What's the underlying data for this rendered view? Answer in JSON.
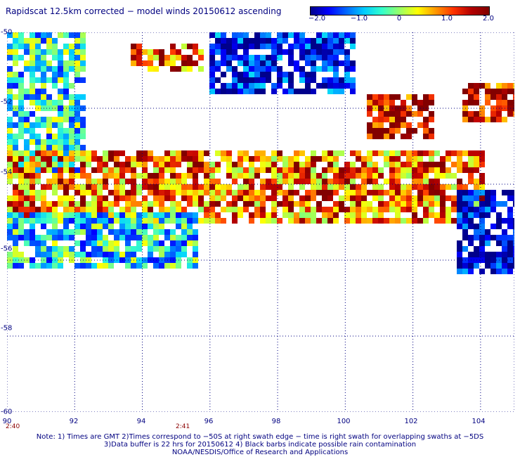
{
  "title": "Rapidscat 12.5km corrected − model winds 20150612 ascending",
  "colorbar": {
    "tick_labels": [
      "−2.0",
      "−1.0",
      "0",
      "1.0",
      "2.0"
    ],
    "tick_values": [
      -2.0,
      -1.0,
      0,
      1.0,
      2.0
    ],
    "colors": [
      "#00008b",
      "#0000ff",
      "#0066ff",
      "#00ccff",
      "#33ffcc",
      "#99ff66",
      "#ffff00",
      "#ff9900",
      "#ff3300",
      "#b30000",
      "#800000"
    ]
  },
  "axes": {
    "lat_labels": [
      "-50",
      "-52",
      "-54",
      "-56",
      "-58",
      "-60"
    ],
    "lon_labels": [
      "90",
      "92",
      "94",
      "96",
      "98",
      "100",
      "102",
      "104"
    ],
    "time_labels": [
      "2:40",
      "2:41"
    ]
  },
  "notes": [
    "Note: 1) Times are GMT 2)Times correspond to −50S at right swath edge − time is right swath for overlapping swaths at −5DS",
    "3)Data buffer is 22 hrs for 20150612 4) Black barbs indicate possible rain contamination",
    "NOAA/NESDIS/Office of Research and Applications"
  ],
  "map_data": {
    "lon_range": [
      90,
      105
    ],
    "lat_range": [
      -60,
      -50
    ],
    "regions": [
      {
        "name": "north-blue-block",
        "lon": [
          96.1,
          100.3
        ],
        "lat": [
          -51.6,
          -50.0
        ],
        "level": -1.6
      },
      {
        "name": "west-strip",
        "lon": [
          90.0,
          92.2
        ],
        "lat": [
          -53.6,
          -50.0
        ],
        "level": -0.4
      },
      {
        "name": "northwest-warm-patch",
        "lon": [
          93.8,
          95.7
        ],
        "lat": [
          -51.0,
          -50.3
        ],
        "level": 1.4
      },
      {
        "name": "central-warm-band",
        "lon": [
          90.1,
          104.0
        ],
        "lat": [
          -55.0,
          -53.2
        ],
        "level": 1.2
      },
      {
        "name": "east-hot-spot",
        "lon": [
          100.8,
          102.6
        ],
        "lat": [
          -52.8,
          -51.7
        ],
        "level": 1.9
      },
      {
        "name": "far-east-hot-spot",
        "lon": [
          103.5,
          105.0
        ],
        "lat": [
          -52.3,
          -51.4
        ],
        "level": 1.9
      },
      {
        "name": "southwest-cool-tail",
        "lon": [
          90.0,
          95.5
        ],
        "lat": [
          -56.2,
          -54.8
        ],
        "level": -0.5
      },
      {
        "name": "east-blue-scatter",
        "lon": [
          103.4,
          105.0
        ],
        "lat": [
          -56.3,
          -54.2
        ],
        "level": -1.8
      }
    ]
  }
}
